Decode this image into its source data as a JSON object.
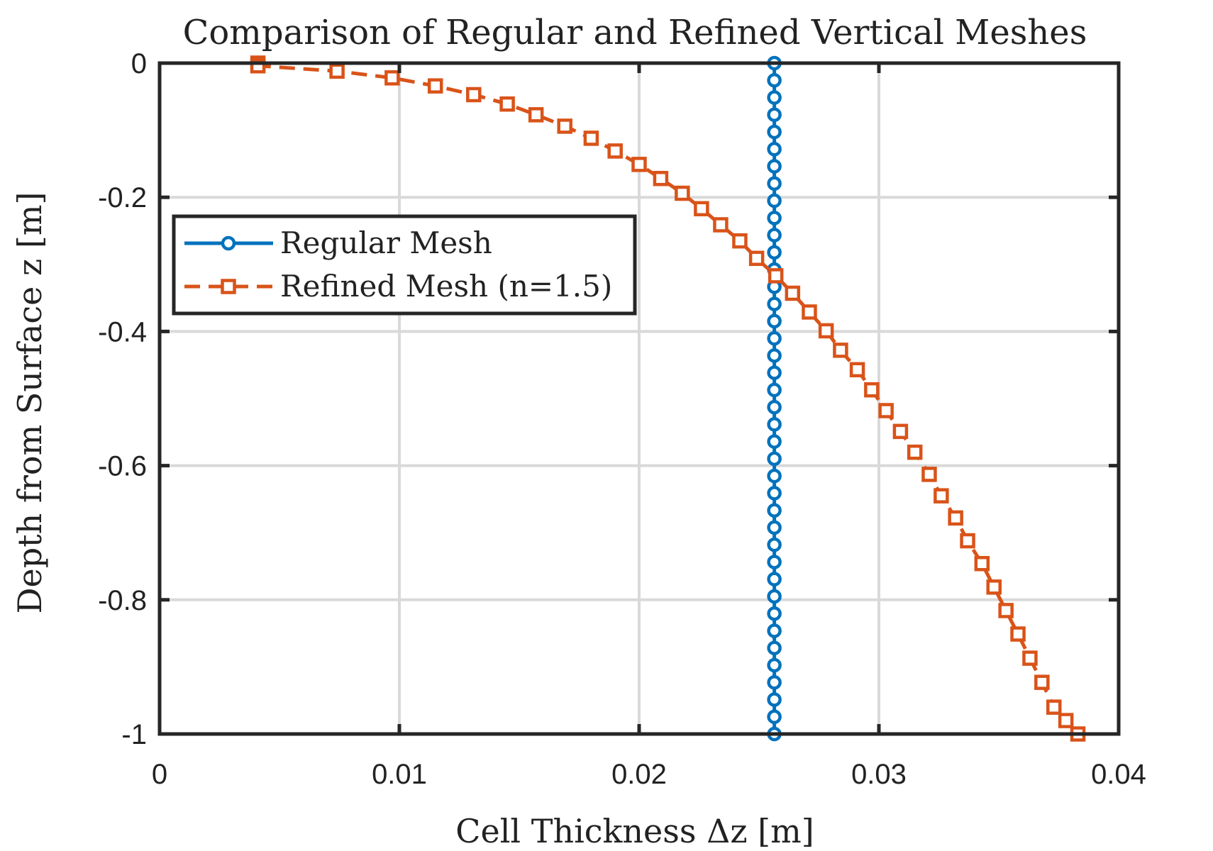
{
  "chart_data": {
    "type": "line",
    "title": "Comparison of Regular and Refined Vertical Meshes",
    "xlabel": "Cell Thickness Δz [m]",
    "ylabel": "Depth from Surface z [m]",
    "xlim": [
      0,
      0.04
    ],
    "ylim": [
      -1,
      0
    ],
    "xticks": [
      0,
      0.01,
      0.02,
      0.03,
      0.04
    ],
    "xtick_labels": [
      "0",
      "0.01",
      "0.02",
      "0.03",
      "0.04"
    ],
    "yticks": [
      0,
      -0.2,
      -0.4,
      -0.6,
      -0.8,
      -1
    ],
    "ytick_labels": [
      "0",
      "-0.2",
      "-0.4",
      "-0.6",
      "-0.8",
      "-1"
    ],
    "grid": true,
    "legend_position": "upper-left",
    "series": [
      {
        "name": "Regular Mesh",
        "color": "#0072BD",
        "marker": "circle",
        "line_style": "solid",
        "x": [
          0.02564,
          0.02564,
          0.02564,
          0.02564,
          0.02564,
          0.02564,
          0.02564,
          0.02564,
          0.02564,
          0.02564,
          0.02564,
          0.02564,
          0.02564,
          0.02564,
          0.02564,
          0.02564,
          0.02564,
          0.02564,
          0.02564,
          0.02564,
          0.02564,
          0.02564,
          0.02564,
          0.02564,
          0.02564,
          0.02564,
          0.02564,
          0.02564,
          0.02564,
          0.02564,
          0.02564,
          0.02564,
          0.02564,
          0.02564,
          0.02564,
          0.02564,
          0.02564,
          0.02564,
          0.02564,
          0.02564
        ],
        "y": [
          0,
          -0.0256,
          -0.0513,
          -0.0769,
          -0.1026,
          -0.1282,
          -0.1538,
          -0.1795,
          -0.2051,
          -0.2308,
          -0.2564,
          -0.2821,
          -0.3077,
          -0.3333,
          -0.359,
          -0.3846,
          -0.4103,
          -0.4359,
          -0.4615,
          -0.4872,
          -0.5128,
          -0.5385,
          -0.5641,
          -0.5897,
          -0.6154,
          -0.641,
          -0.6667,
          -0.6923,
          -0.7179,
          -0.7436,
          -0.7692,
          -0.7949,
          -0.8205,
          -0.8462,
          -0.8718,
          -0.8974,
          -0.9231,
          -0.9487,
          -0.9744,
          -1
        ]
      },
      {
        "name": "Refined Mesh (n=1.5)",
        "color": "#D95319",
        "marker": "square",
        "line_style": "dashed",
        "x": [
          0.0041,
          0.0041,
          0.0074,
          0.0097,
          0.0115,
          0.0131,
          0.0145,
          0.0157,
          0.0169,
          0.018,
          0.019,
          0.02,
          0.0209,
          0.0218,
          0.0226,
          0.0234,
          0.0242,
          0.0249,
          0.0257,
          0.0264,
          0.0271,
          0.0278,
          0.0284,
          0.0291,
          0.0297,
          0.0303,
          0.0309,
          0.0315,
          0.0321,
          0.0326,
          0.0332,
          0.0337,
          0.0343,
          0.0348,
          0.0353,
          0.0358,
          0.0363,
          0.0368,
          0.0373,
          0.0378,
          0.0383
        ],
        "y": [
          0,
          -0.004,
          -0.012,
          -0.022,
          -0.034,
          -0.047,
          -0.061,
          -0.077,
          -0.094,
          -0.112,
          -0.131,
          -0.151,
          -0.172,
          -0.194,
          -0.217,
          -0.241,
          -0.265,
          -0.291,
          -0.317,
          -0.343,
          -0.371,
          -0.399,
          -0.428,
          -0.457,
          -0.487,
          -0.518,
          -0.549,
          -0.58,
          -0.613,
          -0.645,
          -0.678,
          -0.712,
          -0.746,
          -0.781,
          -0.816,
          -0.851,
          -0.887,
          -0.923,
          -0.96,
          -0.98,
          -1
        ]
      }
    ]
  }
}
